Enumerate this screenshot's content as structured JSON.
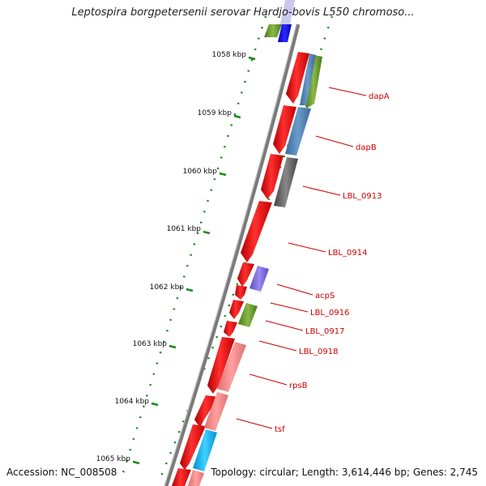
{
  "title": "Leptospira borgpetersenii serovar Hardjo-bovis L550 chromoso...",
  "footer": {
    "accession": "Accession: NC_008508",
    "summary": "Topology: circular; Length: 3,614,446 bp; Genes: 2,745"
  },
  "scale_labels": [
    "1058 kbp",
    "1059 kbp",
    "1060 kbp",
    "1061 kbp",
    "1062 kbp",
    "1063 kbp",
    "1064 kbp",
    "1065 kbp"
  ],
  "gene_labels": [
    "dapA",
    "dapB",
    "LBL_0913",
    "LBL_0914",
    "acpS",
    "LBL_0916",
    "LBL_0917",
    "LBL_0918",
    "rpsB",
    "tsf"
  ],
  "colors": {
    "forward": "#ee0000",
    "label": "#cc0000",
    "tick": "#006600",
    "backbone": "#888888"
  }
}
